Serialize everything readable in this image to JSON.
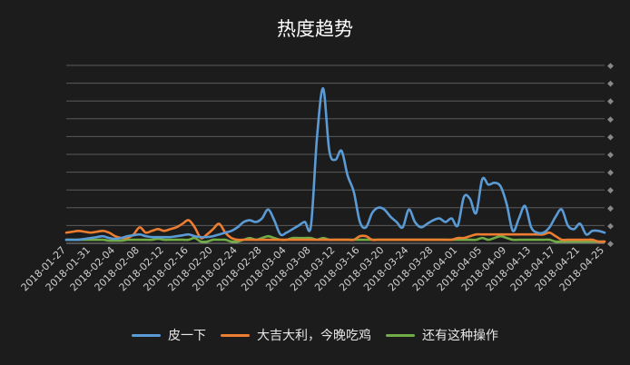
{
  "chart_data": {
    "type": "line",
    "title": "热度趋势",
    "xlabel": "",
    "ylabel": "",
    "ylim": [
      0,
      1
    ],
    "y_tick_labels_shown": false,
    "grid": true,
    "legend_position": "bottom",
    "categories": [
      "2018-01-27",
      "2018-01-28",
      "2018-01-29",
      "2018-01-30",
      "2018-01-31",
      "2018-02-01",
      "2018-02-02",
      "2018-02-03",
      "2018-02-04",
      "2018-02-05",
      "2018-02-06",
      "2018-02-07",
      "2018-02-08",
      "2018-02-09",
      "2018-02-10",
      "2018-02-11",
      "2018-02-12",
      "2018-02-13",
      "2018-02-14",
      "2018-02-15",
      "2018-02-16",
      "2018-02-17",
      "2018-02-18",
      "2018-02-19",
      "2018-02-20",
      "2018-02-21",
      "2018-02-22",
      "2018-02-23",
      "2018-02-24",
      "2018-02-25",
      "2018-02-26",
      "2018-02-27",
      "2018-02-28",
      "2018-03-01",
      "2018-03-02",
      "2018-03-03",
      "2018-03-04",
      "2018-03-05",
      "2018-03-06",
      "2018-03-07",
      "2018-03-08",
      "2018-03-09",
      "2018-03-10",
      "2018-03-11",
      "2018-03-12",
      "2018-03-13",
      "2018-03-14",
      "2018-03-15",
      "2018-03-16",
      "2018-03-17",
      "2018-03-18",
      "2018-03-19",
      "2018-03-20",
      "2018-03-21",
      "2018-03-22",
      "2018-03-23",
      "2018-03-24",
      "2018-03-25",
      "2018-03-26",
      "2018-03-27",
      "2018-03-28",
      "2018-03-29",
      "2018-03-30",
      "2018-03-31",
      "2018-04-01",
      "2018-04-02",
      "2018-04-03",
      "2018-04-04",
      "2018-04-05",
      "2018-04-06",
      "2018-04-07",
      "2018-04-08",
      "2018-04-09",
      "2018-04-10",
      "2018-04-11",
      "2018-04-12",
      "2018-04-13",
      "2018-04-14",
      "2018-04-15",
      "2018-04-16",
      "2018-04-17",
      "2018-04-18",
      "2018-04-19",
      "2018-04-20",
      "2018-04-21",
      "2018-04-22",
      "2018-04-23",
      "2018-04-24",
      "2018-04-25"
    ],
    "tick_labels": [
      "2018-01-27",
      "2018-01-31",
      "2018-02-04",
      "2018-02-08",
      "2018-02-12",
      "2018-02-16",
      "2018-02-20",
      "2018-02-24",
      "2018-02-28",
      "2018-03-04",
      "2018-03-08",
      "2018-03-12",
      "2018-03-16",
      "2018-03-20",
      "2018-03-24",
      "2018-03-28",
      "2018-04-01",
      "2018-04-05",
      "2018-04-09",
      "2018-04-13",
      "2018-04-17",
      "2018-04-21",
      "2018-04-25"
    ],
    "series": [
      {
        "name": "皮一下",
        "color": "#5b9bd5",
        "values": [
          0.02,
          0.02,
          0.02,
          0.025,
          0.03,
          0.035,
          0.04,
          0.03,
          0.025,
          0.03,
          0.04,
          0.045,
          0.05,
          0.04,
          0.035,
          0.035,
          0.035,
          0.035,
          0.04,
          0.045,
          0.05,
          0.04,
          0.035,
          0.035,
          0.04,
          0.05,
          0.06,
          0.07,
          0.09,
          0.12,
          0.13,
          0.12,
          0.14,
          0.19,
          0.13,
          0.05,
          0.06,
          0.08,
          0.1,
          0.12,
          0.1,
          0.6,
          0.87,
          0.52,
          0.47,
          0.52,
          0.38,
          0.29,
          0.12,
          0.09,
          0.17,
          0.2,
          0.19,
          0.15,
          0.12,
          0.09,
          0.19,
          0.12,
          0.09,
          0.11,
          0.13,
          0.14,
          0.12,
          0.14,
          0.1,
          0.26,
          0.25,
          0.17,
          0.36,
          0.33,
          0.34,
          0.32,
          0.22,
          0.07,
          0.14,
          0.21,
          0.09,
          0.06,
          0.06,
          0.09,
          0.15,
          0.19,
          0.1,
          0.08,
          0.11,
          0.05,
          0.07,
          0.07,
          0.06
        ]
      },
      {
        "name": "大吉大利，今晚吃鸡",
        "color": "#ed7d31",
        "values": [
          0.06,
          0.065,
          0.07,
          0.065,
          0.06,
          0.065,
          0.07,
          0.06,
          0.04,
          0.03,
          0.03,
          0.05,
          0.09,
          0.06,
          0.07,
          0.08,
          0.07,
          0.08,
          0.09,
          0.11,
          0.13,
          0.09,
          0.03,
          0.05,
          0.08,
          0.11,
          0.06,
          0.03,
          0.02,
          0.02,
          0.02,
          0.02,
          0.02,
          0.02,
          0.02,
          0.02,
          0.02,
          0.02,
          0.02,
          0.02,
          0.02,
          0.02,
          0.02,
          0.02,
          0.02,
          0.02,
          0.02,
          0.02,
          0.04,
          0.04,
          0.02,
          0.02,
          0.02,
          0.02,
          0.02,
          0.02,
          0.02,
          0.02,
          0.02,
          0.02,
          0.02,
          0.02,
          0.02,
          0.02,
          0.03,
          0.03,
          0.04,
          0.05,
          0.05,
          0.05,
          0.05,
          0.05,
          0.05,
          0.05,
          0.05,
          0.05,
          0.05,
          0.05,
          0.05,
          0.06,
          0.04,
          0.02,
          0.02,
          0.02,
          0.02,
          0.02,
          0.02,
          0.01,
          0.01
        ]
      },
      {
        "name": "还有这种操作",
        "color": "#70ad47",
        "values": [
          0.02,
          0.02,
          0.02,
          0.02,
          0.02,
          0.02,
          0.02,
          0.015,
          0.015,
          0.015,
          0.02,
          0.02,
          0.02,
          0.02,
          0.02,
          0.025,
          0.02,
          0.02,
          0.02,
          0.02,
          0.02,
          0.03,
          0.01,
          0.01,
          0.02,
          0.02,
          0.02,
          0.01,
          0.01,
          0.02,
          0.03,
          0.02,
          0.03,
          0.04,
          0.03,
          0.02,
          0.02,
          0.03,
          0.03,
          0.03,
          0.03,
          0.02,
          0.03,
          0.02,
          0.02,
          0.02,
          0.02,
          0.02,
          0.02,
          0.02,
          0.02,
          0.02,
          0.02,
          0.02,
          0.02,
          0.02,
          0.02,
          0.02,
          0.02,
          0.02,
          0.02,
          0.02,
          0.02,
          0.02,
          0.02,
          0.02,
          0.02,
          0.02,
          0.03,
          0.02,
          0.03,
          0.04,
          0.03,
          0.02,
          0.02,
          0.02,
          0.02,
          0.02,
          0.02,
          0.02,
          0.01,
          0.01,
          0.01,
          0.01,
          0.01,
          0.01,
          0.01,
          0.01,
          0.01
        ]
      }
    ]
  }
}
